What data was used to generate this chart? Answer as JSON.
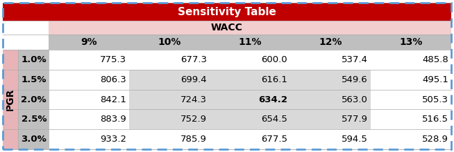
{
  "title": "Sensitivity Table",
  "title_bg": "#C00000",
  "title_fg": "#FFFFFF",
  "wacc_label": "WACC",
  "wacc_bg": "#F2CECE",
  "col_headers": [
    "9%",
    "10%",
    "11%",
    "12%",
    "13%"
  ],
  "col_header_bg": "#BFBFBF",
  "row_labels": [
    "1.0%",
    "1.5%",
    "2.0%",
    "2.5%",
    "3.0%"
  ],
  "pgr_label": "PGR",
  "pgr_bg": "#E8B4B8",
  "data": [
    [
      775.3,
      677.3,
      600.0,
      537.4,
      485.8
    ],
    [
      806.3,
      699.4,
      616.1,
      549.6,
      495.1
    ],
    [
      842.1,
      724.3,
      634.2,
      563.0,
      505.3
    ],
    [
      883.9,
      752.9,
      654.5,
      577.9,
      516.5
    ],
    [
      933.2,
      785.9,
      677.5,
      594.5,
      528.9
    ]
  ],
  "highlight_cell": [
    2,
    2
  ],
  "gray_block_rows": [
    1,
    2,
    3
  ],
  "gray_block_cols": [
    1,
    2,
    3
  ],
  "gray_bg": "#D9D9D9",
  "white_bg": "#FFFFFF",
  "row_label_bg": "#D9D9D9",
  "border_color": "#5B9BD5",
  "outer_bg": "#FFFFFF",
  "figw": 6.54,
  "figh": 2.2,
  "dpi": 100
}
